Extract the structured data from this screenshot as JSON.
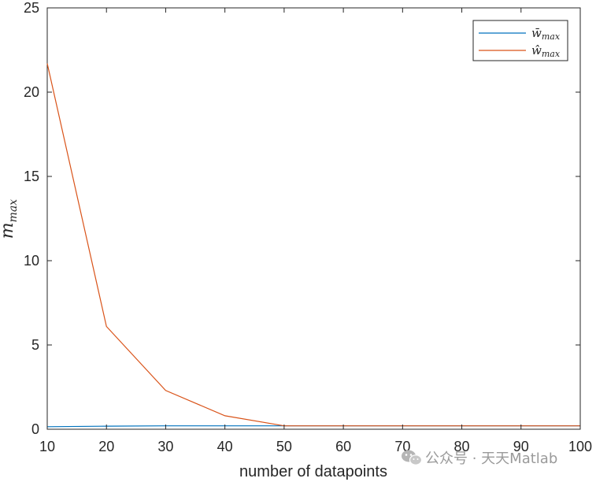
{
  "chart_data": {
    "type": "line",
    "x": [
      10,
      20,
      30,
      40,
      50,
      60,
      70,
      80,
      90,
      100
    ],
    "xlim": [
      10,
      100
    ],
    "ylim": [
      0,
      25
    ],
    "xticks": [
      "10",
      "20",
      "30",
      "40",
      "50",
      "60",
      "70",
      "80",
      "90",
      "100"
    ],
    "yticks": [
      "0",
      "5",
      "10",
      "15",
      "20",
      "25"
    ],
    "xlabel": "number of datapoints",
    "ylabel": "m",
    "ylabel_sub": "max",
    "grid": false,
    "legend_position": "top-right",
    "series": [
      {
        "name_base": "w̄",
        "name_sub": "max",
        "color": "#0072BD",
        "values": [
          0.15,
          0.18,
          0.2,
          0.2,
          0.2,
          0.2,
          0.2,
          0.2,
          0.2,
          0.2
        ]
      },
      {
        "name_base": "ŵ",
        "name_sub": "max",
        "color": "#D95319",
        "values": [
          21.7,
          6.1,
          2.3,
          0.8,
          0.2,
          0.2,
          0.2,
          0.2,
          0.2,
          0.2
        ]
      }
    ]
  },
  "watermark": {
    "icon": "wechat-icon",
    "text": "公众号 · 天天Matlab"
  }
}
